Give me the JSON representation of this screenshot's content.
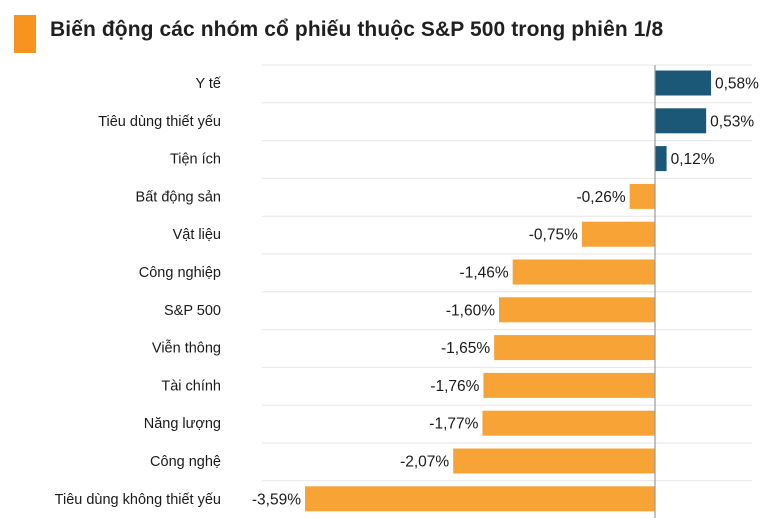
{
  "title": "Biến động các nhóm cổ phiếu thuộc S&P 500 trong phiên 1/8",
  "colors": {
    "accent": "#f7931e",
    "positive": "#1b5777",
    "negative": "#f7a336",
    "grid": "#e6e6e6",
    "zero_line": "#9a9a9a"
  },
  "chart_data": {
    "type": "bar",
    "orientation": "horizontal",
    "title": "Biến động các nhóm cổ phiếu thuộc S&P 500 trong phiên 1/8",
    "categories": [
      "Y tế",
      "Tiêu dùng thiết yếu",
      "Tiện ích",
      "Bất động sản",
      "Vật liệu",
      "Công nghiệp",
      "S&P 500",
      "Viễn thông",
      "Tài chính",
      "Năng lượng",
      "Công nghệ",
      "Tiêu dùng không thiết yếu"
    ],
    "values": [
      0.58,
      0.53,
      0.12,
      -0.26,
      -0.75,
      -1.46,
      -1.6,
      -1.65,
      -1.76,
      -1.77,
      -2.07,
      -3.59
    ],
    "value_labels": [
      "0,58%",
      "0,53%",
      "0,12%",
      "-0,26%",
      "-0,75%",
      "-1,46%",
      "-1,60%",
      "-1,65%",
      "-1,76%",
      "-1,77%",
      "-2,07%",
      "-3,59%"
    ],
    "xlim": [
      -3.59,
      0.58
    ],
    "grid": true,
    "legend": "none"
  }
}
